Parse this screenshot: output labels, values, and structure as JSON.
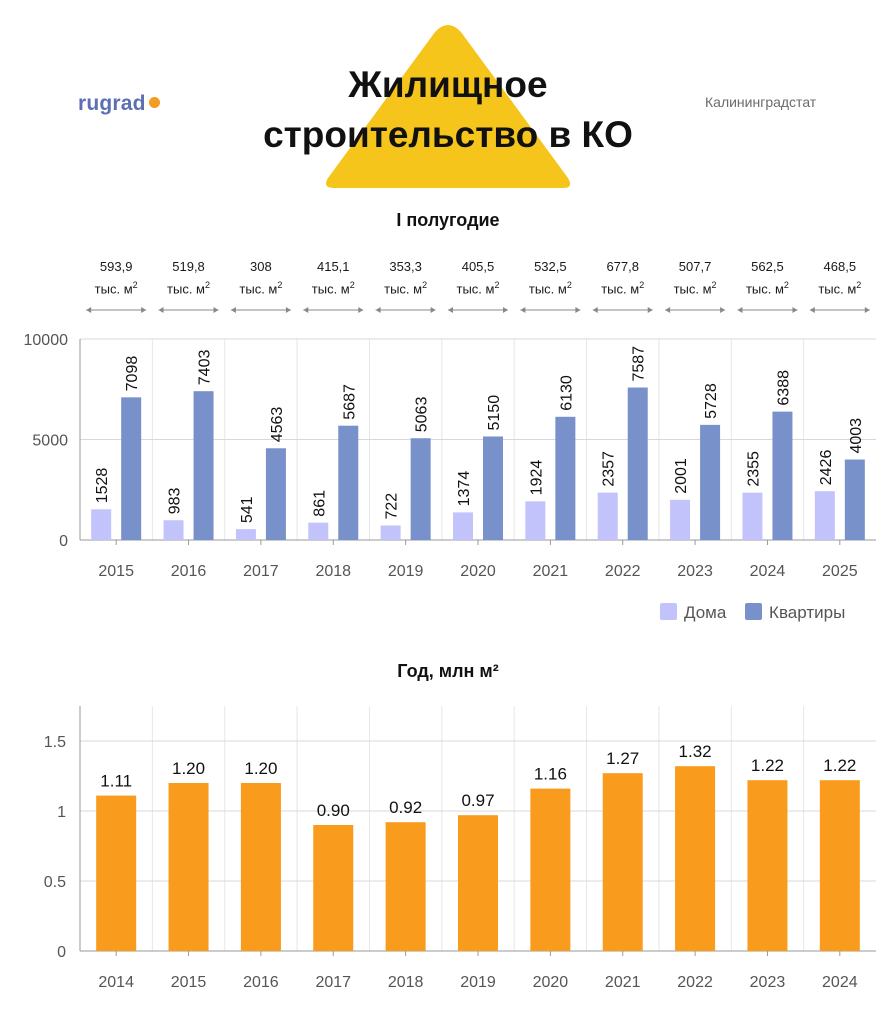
{
  "header": {
    "logo_text": "rugrad",
    "title_line1": "Жилищное",
    "title_line2": "строительство в КО",
    "source": "Калининградстат"
  },
  "colors": {
    "accent_yellow": "#f6c51c",
    "houses": "#c2c3fb",
    "apartments": "#7891ca",
    "annual_bar": "#f99b1c",
    "logo": "#5b6fb3"
  },
  "chart_data": [
    {
      "type": "bar",
      "title": "I полугодие",
      "categories": [
        "2015",
        "2016",
        "2017",
        "2018",
        "2019",
        "2020",
        "2021",
        "2022",
        "2023",
        "2024",
        "2025"
      ],
      "series": [
        {
          "name": "Дома",
          "values": [
            1528,
            983,
            541,
            861,
            722,
            1374,
            1924,
            2357,
            2001,
            2355,
            2426
          ]
        },
        {
          "name": "Квартиры",
          "values": [
            7098,
            7403,
            4563,
            5687,
            5063,
            5150,
            6130,
            7587,
            5728,
            6388,
            4003
          ]
        }
      ],
      "area_labels": [
        "593,9",
        "519,8",
        "308",
        "415,1",
        "353,3",
        "405,5",
        "532,5",
        "677,8",
        "507,7",
        "562,5",
        "468,5"
      ],
      "area_unit": "тыс. м",
      "area_unit_sup": "2",
      "y_ticks": [
        "0",
        "5000",
        "10000"
      ],
      "ylim": [
        0,
        10000
      ],
      "grid": true,
      "legend": "bottom-right"
    },
    {
      "type": "bar",
      "title": "Год, млн м²",
      "categories": [
        "2014",
        "2015",
        "2016",
        "2017",
        "2018",
        "2019",
        "2020",
        "2021",
        "2022",
        "2023",
        "2024"
      ],
      "values": [
        1.11,
        1.2,
        1.2,
        0.9,
        0.92,
        0.97,
        1.16,
        1.27,
        1.32,
        1.22,
        1.22
      ],
      "value_labels": [
        "1.11",
        "1.20",
        "1.20",
        "0.90",
        "0.92",
        "0.97",
        "1.16",
        "1.27",
        "1.32",
        "1.22",
        "1.22"
      ],
      "y_ticks": [
        "0",
        "0.5",
        "1",
        "1.5"
      ],
      "ylim": [
        0,
        1.75
      ],
      "grid": true
    }
  ]
}
